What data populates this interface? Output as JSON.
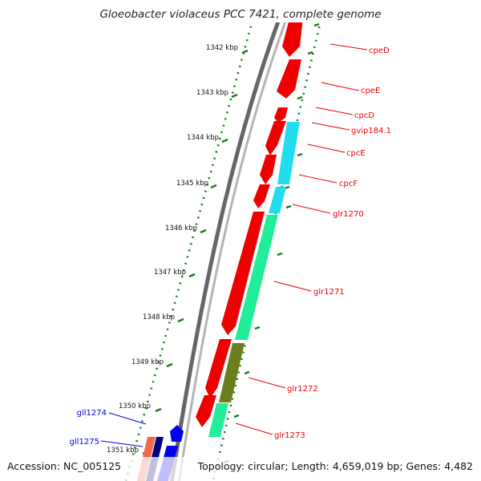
{
  "title": "Gloeobacter violaceus PCC 7421, complete genome",
  "accession_text": "Accession: NC_005125",
  "summary_text": "Topology: circular; Length: 4,659,019 bp; Genes: 4,482",
  "colors": {
    "forward_gene": "#ee0000",
    "reverse_gene": "#0000ee",
    "backbone": "#777777",
    "tick": "#1a7a1a",
    "cyan_feature": "#22ddee",
    "green_feature": "#22ee99",
    "olive_feature": "#6b7d1e",
    "salmon_feature": "#f06a4a"
  },
  "ticks": [
    {
      "label": "1342 kbp"
    },
    {
      "label": "1343 kbp"
    },
    {
      "label": "1344 kbp"
    },
    {
      "label": "1345 kbp"
    },
    {
      "label": "1346 kbp"
    },
    {
      "label": "1347 kbp"
    },
    {
      "label": "1348 kbp"
    },
    {
      "label": "1349 kbp"
    },
    {
      "label": "1350 kbp"
    },
    {
      "label": "1351 kbp"
    }
  ],
  "forward_genes": [
    {
      "label": "cpeD"
    },
    {
      "label": "cpeE"
    },
    {
      "label": "cpcD"
    },
    {
      "label": "gvip184.1"
    },
    {
      "label": "cpcE"
    },
    {
      "label": "cpcF"
    },
    {
      "label": "glr1270"
    },
    {
      "label": "glr1271"
    },
    {
      "label": "glr1272"
    },
    {
      "label": "glr1273"
    }
  ],
  "reverse_genes": [
    {
      "label": "gll1274"
    },
    {
      "label": "gll1275"
    }
  ]
}
